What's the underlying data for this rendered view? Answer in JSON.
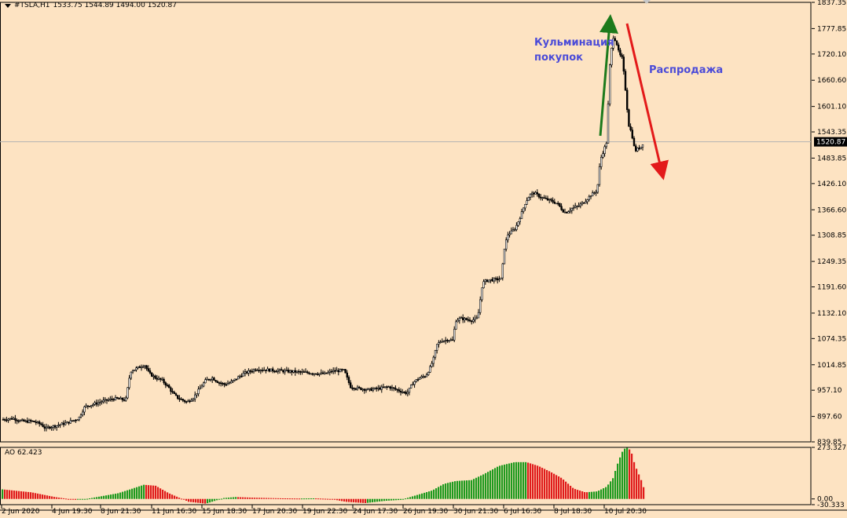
{
  "header": {
    "symbol": "#TSLA,H1",
    "ohlc": "1533.75 1544.89 1494.00 1520.87"
  },
  "annotations": {
    "buy_climax_line1": "Кульминация",
    "buy_climax_line2": "покупок",
    "selloff": "Распродажа"
  },
  "indicator": {
    "name": "AO",
    "value": "62.423"
  },
  "colors": {
    "background": "#fde3c2",
    "candle": "#000000",
    "ao_up": "#1e9a1e",
    "ao_down": "#e01b1b",
    "up_arrow": "#1c7a1c",
    "down_arrow": "#e31a1a",
    "annotation_text": "#4b4bd8",
    "current_price_line": "#b3b3b3"
  },
  "chart_data": [
    {
      "type": "candlestick",
      "title": "#TSLA,H1",
      "current_price": 1520.87,
      "ylim": [
        839.85,
        1837.35
      ],
      "y_ticks": [
        "1837.35",
        "1777.85",
        "1720.10",
        "1660.60",
        "1601.10",
        "1543.35",
        "1483.85",
        "1426.10",
        "1366.60",
        "1308.85",
        "1249.35",
        "1191.60",
        "1132.10",
        "1074.35",
        "1014.85",
        "957.10",
        "897.60",
        "839.85"
      ],
      "x_ticks": [
        "2 Jun 2020",
        "4 Jun 19:30",
        "8 Jun 21:30",
        "11 Jun 16:30",
        "15 Jun 18:30",
        "17 Jun 20:30",
        "19 Jun 22:30",
        "24 Jun 17:30",
        "26 Jun 19:30",
        "30 Jun 21:30",
        "6 Jul 16:30",
        "8 Jul 18:30",
        "10 Jul 20:30"
      ],
      "price_path_x": [
        0,
        10,
        18,
        24,
        32,
        40,
        44,
        52,
        58,
        62,
        70,
        78,
        84,
        92,
        100,
        108,
        118,
        124,
        130,
        138,
        146,
        152,
        160,
        166,
        172,
        178,
        184,
        190,
        198,
        206,
        214,
        220,
        226,
        232,
        238,
        246,
        254,
        262,
        270,
        278,
        286,
        294,
        302,
        310,
        318,
        326,
        334,
        342,
        350,
        358,
        366,
        374,
        382,
        390,
        398,
        406,
        414,
        422,
        430,
        438,
        446,
        454,
        462,
        470,
        478,
        486,
        494,
        502,
        510,
        518,
        526,
        534,
        542,
        548,
        552,
        556,
        562,
        566,
        570,
        576,
        580,
        586,
        592,
        600,
        608,
        614,
        618,
        622,
        630,
        638,
        642,
        646,
        650,
        656,
        662,
        668,
        674,
        680,
        688,
        696,
        704,
        710,
        716,
        720,
        728,
        736,
        744,
        752,
        760,
        764,
        768,
        772,
        776,
        780,
        784,
        788,
        792,
        796,
        800,
        804,
        808,
        812,
        816,
        819
      ],
      "price_path_close": [
        890,
        892,
        893,
        888,
        886,
        887,
        885,
        880,
        870,
        873,
        876,
        880,
        882,
        888,
        893,
        920,
        925,
        928,
        932,
        935,
        938,
        937,
        935,
        1000,
        1005,
        1010,
        1015,
        995,
        985,
        980,
        965,
        950,
        940,
        935,
        930,
        940,
        960,
        980,
        985,
        975,
        970,
        975,
        985,
        995,
        1000,
        1005,
        1004,
        1003,
        1002,
        1001,
        1000,
        999,
        998,
        997,
        996,
        995,
        994,
        1000,
        1001,
        1002,
        965,
        962,
        960,
        958,
        960,
        962,
        965,
        960,
        955,
        950,
        975,
        985,
        990,
        1010,
        1030,
        1060,
        1070,
        1070,
        1072,
        1070,
        1115,
        1120,
        1118,
        1116,
        1120,
        1200,
        1205,
        1207,
        1208,
        1210,
        1280,
        1310,
        1315,
        1325,
        1350,
        1380,
        1400,
        1405,
        1395,
        1390,
        1385,
        1380,
        1365,
        1360,
        1370,
        1375,
        1385,
        1400,
        1410,
        1480,
        1500,
        1520,
        1690,
        1760,
        1750,
        1720,
        1710,
        1640,
        1560,
        1540,
        1500,
        1505,
        1510,
        1520.87
      ]
    },
    {
      "type": "bar",
      "title": "AO 62.423",
      "ylim": [
        -30.333,
        273.327
      ],
      "y_ticks": [
        "273.327",
        "0.00",
        "-30.333"
      ],
      "ao_path_x": [
        0,
        40,
        70,
        95,
        110,
        130,
        150,
        165,
        183,
        198,
        215,
        240,
        262,
        285,
        300,
        320,
        340,
        360,
        380,
        400,
        420,
        440,
        465,
        490,
        510,
        530,
        550,
        565,
        580,
        600,
        615,
        635,
        655,
        670,
        685,
        700,
        715,
        730,
        745,
        760,
        772,
        780,
        787,
        792,
        796,
        800,
        804,
        808,
        812,
        816,
        819
      ],
      "ao_path_values": [
        52,
        35,
        10,
        -5,
        0,
        15,
        30,
        50,
        75,
        70,
        30,
        -15,
        -25,
        5,
        10,
        7,
        5,
        3,
        2,
        3,
        0,
        -15,
        -22,
        -10,
        -5,
        20,
        45,
        80,
        95,
        100,
        130,
        175,
        195,
        195,
        175,
        145,
        110,
        55,
        35,
        40,
        65,
        110,
        200,
        250,
        272,
        270,
        240,
        180,
        140,
        100,
        62.423
      ]
    }
  ]
}
